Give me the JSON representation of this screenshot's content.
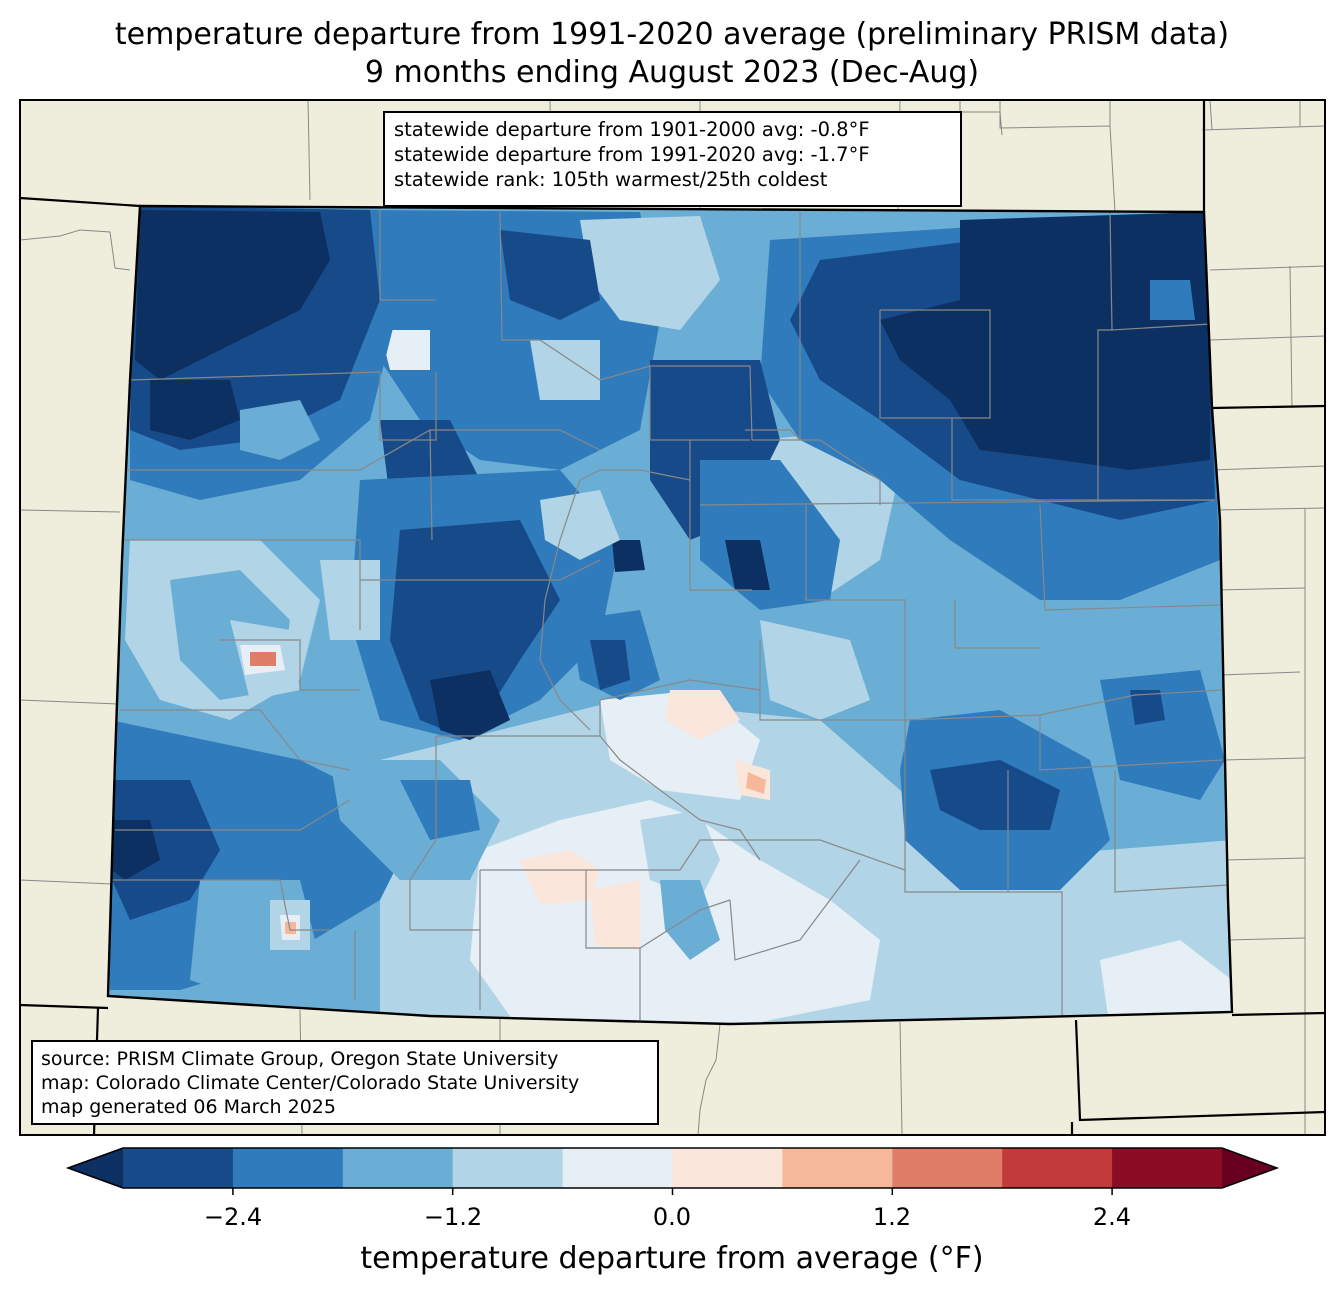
{
  "title": {
    "line1": "temperature departure from 1991-2020 average (preliminary PRISM data)",
    "line2": "9 months ending August 2023 (Dec-Aug)"
  },
  "stats": {
    "line1": "statewide departure from 1901-2000 avg: -0.8°F",
    "line2": "statewide departure from 1991-2020 avg: -1.7°F",
    "line3": "statewide rank: 105th warmest/25th coldest"
  },
  "credits": {
    "line1": "source: PRISM Climate Group, Oregon State University",
    "line2": "map: Colorado Climate Center/Colorado State University",
    "line3": "map generated 06 March 2025"
  },
  "colorbar": {
    "label": "temperature departure from average (°F)",
    "ticks": [
      "−2.4",
      "−1.2",
      "0.0",
      "1.2",
      "2.4"
    ],
    "levels": [
      -3.0,
      -2.4,
      -1.8,
      -1.2,
      -0.6,
      0.0,
      0.6,
      1.2,
      1.8,
      2.4,
      3.0
    ],
    "colors": [
      "#164a88",
      "#2f7bbc",
      "#6aaed5",
      "#b2d4e7",
      "#e6eff5",
      "#fbe6dc",
      "#f6b89b",
      "#e07d68",
      "#c23a3a",
      "#8a0c25"
    ],
    "extend_min_color": "#0c3061",
    "extend_max_color": "#67001f"
  },
  "map": {
    "land_color": "#efeedd",
    "region_colors": {
      "coldest": "#0c3061",
      "very_cold": "#164a88",
      "cold": "#2f7bbc",
      "cool": "#6aaed5",
      "slightly_cool": "#b2d4e7",
      "near_normal": "#e6eff5",
      "slightly_warm": "#fbe6dc",
      "warm": "#f6b89b",
      "warmer": "#e07d68"
    }
  }
}
